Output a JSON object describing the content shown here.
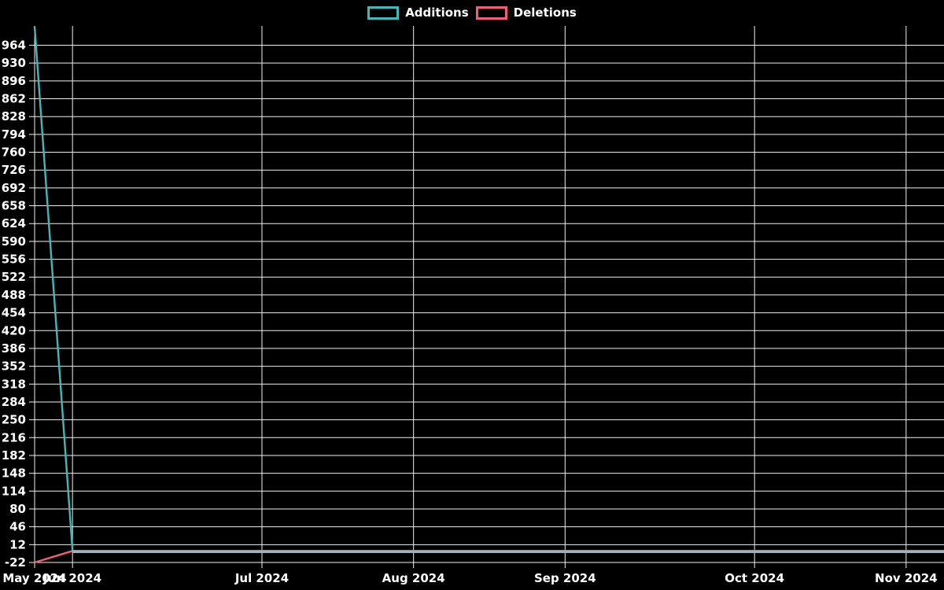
{
  "page": {
    "background": "#000000",
    "text_color": "#ffffff",
    "grid_color": "#efefef"
  },
  "legend": {
    "items": [
      {
        "label": "Additions",
        "color": "#45b7b7"
      },
      {
        "label": "Deletions",
        "color": "#ef6078"
      }
    ]
  },
  "chart_data": {
    "type": "line",
    "title": "",
    "xlabel": "",
    "ylabel": "",
    "grid": true,
    "legend_position": "top-center",
    "x_axis": {
      "unit": "week",
      "total_weeks": 25,
      "tick_labels": [
        "May 2024",
        "Jun 2024",
        "Jul 2024",
        "Aug 2024",
        "Sep 2024",
        "Oct 2024",
        "Nov 2024"
      ],
      "tick_week_indices": [
        0,
        1,
        6,
        10,
        14,
        19,
        23
      ]
    },
    "y_axis": {
      "tick_values": [
        964,
        930,
        896,
        862,
        828,
        794,
        760,
        726,
        692,
        658,
        624,
        590,
        556,
        522,
        488,
        454,
        420,
        386,
        352,
        318,
        284,
        250,
        216,
        182,
        148,
        114,
        80,
        46,
        12,
        -22
      ],
      "ylim": [
        -22,
        1001
      ]
    },
    "series": [
      {
        "name": "Additions",
        "color": "#45b7b7",
        "values": [
          1000,
          0,
          0,
          0,
          0,
          0,
          0,
          0,
          0,
          0,
          0,
          0,
          0,
          0,
          0,
          0,
          0,
          0,
          0,
          0,
          0,
          0,
          0,
          0,
          0
        ]
      },
      {
        "name": "Deletions",
        "color": "#ef6078",
        "values": [
          -22,
          0,
          0,
          0,
          0,
          0,
          0,
          0,
          0,
          0,
          0,
          0,
          0,
          0,
          0,
          0,
          0,
          0,
          0,
          0,
          0,
          0,
          0,
          0,
          0
        ]
      }
    ],
    "overlap_line_color": "#9bb1bd"
  }
}
